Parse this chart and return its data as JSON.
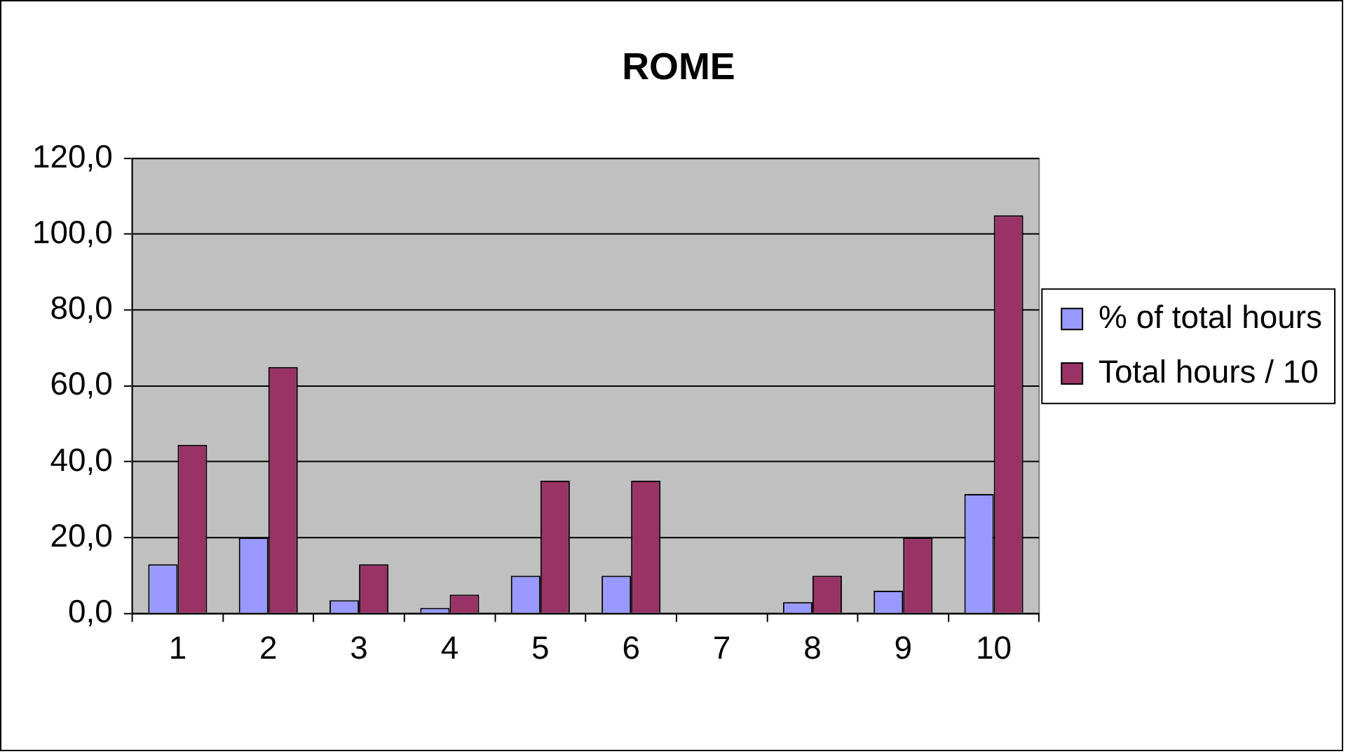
{
  "chart_data": {
    "type": "bar",
    "title": "ROME",
    "categories": [
      "1",
      "2",
      "3",
      "4",
      "5",
      "6",
      "7",
      "8",
      "9",
      "10"
    ],
    "series": [
      {
        "name": "% of total hours",
        "color": "#9999ff",
        "values": [
          13,
          20,
          3.5,
          1.5,
          10,
          10,
          0,
          3,
          6,
          31.5
        ]
      },
      {
        "name": "Total hours / 10",
        "color": "#993366",
        "values": [
          44.5,
          65,
          13,
          5,
          35,
          35,
          0,
          10,
          20,
          105
        ]
      }
    ],
    "ylim": [
      0,
      120
    ],
    "yticks": [
      {
        "value": 0,
        "label": "0,0"
      },
      {
        "value": 20,
        "label": "20,0"
      },
      {
        "value": 40,
        "label": "40,0"
      },
      {
        "value": 60,
        "label": "60,0"
      },
      {
        "value": 80,
        "label": "80,0"
      },
      {
        "value": 100,
        "label": "100,0"
      },
      {
        "value": 120,
        "label": "120,0"
      }
    ],
    "grid": "y",
    "legend": "right"
  }
}
